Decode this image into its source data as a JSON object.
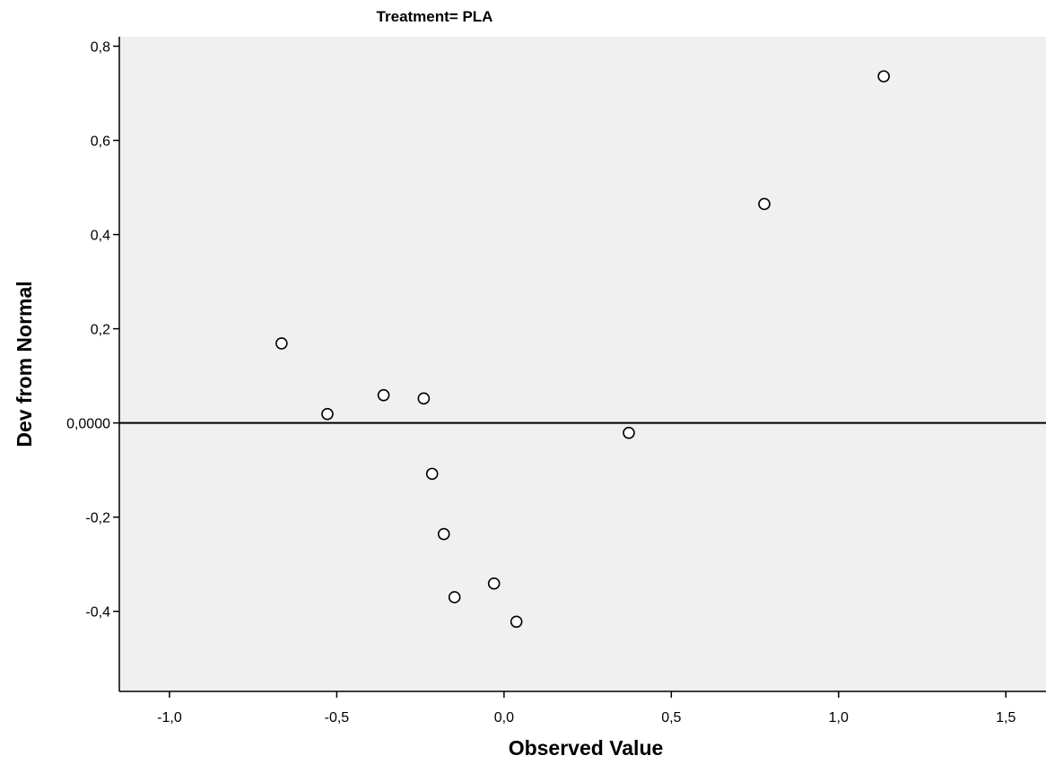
{
  "chart_data": {
    "type": "scatter",
    "title": "Treatment= PLA",
    "xlabel": "Observed Value",
    "ylabel": "Dev from Normal",
    "xlim": [
      -1.15,
      1.62
    ],
    "ylim": [
      -0.57,
      0.82
    ],
    "x_ticks": [
      {
        "value": -1.0,
        "label": "-1,0"
      },
      {
        "value": -0.5,
        "label": "-0,5"
      },
      {
        "value": 0.0,
        "label": "0,0"
      },
      {
        "value": 0.5,
        "label": "0,5"
      },
      {
        "value": 1.0,
        "label": "1,0"
      },
      {
        "value": 1.5,
        "label": "1,5"
      }
    ],
    "y_ticks": [
      {
        "value": 0.8,
        "label": "0,8"
      },
      {
        "value": 0.6,
        "label": "0,6"
      },
      {
        "value": 0.4,
        "label": "0,4"
      },
      {
        "value": 0.2,
        "label": "0,2"
      },
      {
        "value": 0.0,
        "label": "0,0000"
      },
      {
        "value": -0.2,
        "label": "-0,2"
      },
      {
        "value": -0.4,
        "label": "-0,4"
      }
    ],
    "reference_line_y": 0.0,
    "grid": false,
    "points": [
      {
        "x": -0.665,
        "y": 0.169
      },
      {
        "x": -0.528,
        "y": 0.019
      },
      {
        "x": -0.36,
        "y": 0.059
      },
      {
        "x": -0.24,
        "y": 0.052
      },
      {
        "x": -0.215,
        "y": -0.108
      },
      {
        "x": -0.18,
        "y": -0.236
      },
      {
        "x": -0.148,
        "y": -0.37
      },
      {
        "x": -0.03,
        "y": -0.341
      },
      {
        "x": 0.037,
        "y": -0.422
      },
      {
        "x": 0.373,
        "y": -0.021
      },
      {
        "x": 0.778,
        "y": 0.465
      },
      {
        "x": 1.135,
        "y": 0.736
      }
    ],
    "colors": {
      "plot_background": "#f0f0f0",
      "marker_fill": "#ffffff",
      "marker_stroke": "#000000",
      "axis": "#000000"
    }
  }
}
